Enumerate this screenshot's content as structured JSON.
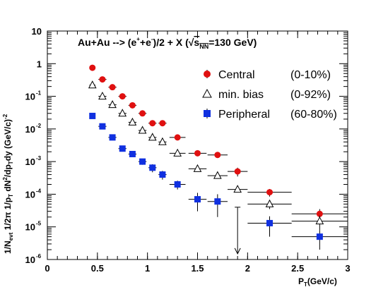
{
  "chart_data": {
    "type": "scatter",
    "yscale": "log",
    "xlim": [
      0,
      3
    ],
    "ylim": [
      1e-06,
      10
    ],
    "xticks": [
      "0",
      "0.5",
      "1",
      "1.5",
      "2",
      "2.5",
      "3"
    ],
    "yticks": [
      {
        "base": "10",
        "exp": "-6",
        "value": 1e-06
      },
      {
        "base": "10",
        "exp": "-5",
        "value": 1e-05
      },
      {
        "base": "10",
        "exp": "-4",
        "value": 0.0001
      },
      {
        "base": "10",
        "exp": "-3",
        "value": 0.001
      },
      {
        "base": "10",
        "exp": "-2",
        "value": 0.01
      },
      {
        "base": "10",
        "exp": "-1",
        "value": 0.1
      },
      {
        "base": "1",
        "exp": "",
        "value": 1
      },
      {
        "base": "10",
        "exp": "",
        "value": 10
      }
    ],
    "title": {
      "part1": "Au+Au --> (e",
      "sup1": "+",
      "part2": "+e",
      "sup2": "-",
      "part3": ")/2 + X   (",
      "part4": "s",
      "sub": "NN",
      "part5": "=130 GeV)"
    },
    "xlabel": {
      "main": "P",
      "sub": "T",
      "rest": "(GeV/c)"
    },
    "ylabel": "1/N_evt 1/2π 1/p_T dN²/dp_T dy (GeV/c)^-2",
    "legend": [
      {
        "name": "Central",
        "range": "(0-10%)",
        "color": "#e01010",
        "marker": "circle"
      },
      {
        "name": "min. bias",
        "range": "(0-92%)",
        "color": "#000000",
        "marker": "triangle-open"
      },
      {
        "name": "Peripheral",
        "range": "(60-80%)",
        "color": "#1030e0",
        "marker": "square"
      }
    ],
    "series": [
      {
        "name": "Central",
        "points": [
          {
            "x": 0.45,
            "y": 0.75,
            "xerr": 0.03
          },
          {
            "x": 0.55,
            "y": 0.33,
            "xerr": 0.04
          },
          {
            "x": 0.65,
            "y": 0.19,
            "xerr": 0.04
          },
          {
            "x": 0.75,
            "y": 0.1,
            "xerr": 0.04
          },
          {
            "x": 0.85,
            "y": 0.053,
            "xerr": 0.04
          },
          {
            "x": 0.95,
            "y": 0.03,
            "xerr": 0.04
          },
          {
            "x": 1.05,
            "y": 0.015,
            "xerr": 0.04
          },
          {
            "x": 1.15,
            "y": 0.015,
            "xerr": 0.04
          },
          {
            "x": 1.3,
            "y": 0.0055,
            "xerr": 0.08
          },
          {
            "x": 1.5,
            "y": 0.0018,
            "xerr": 0.09
          },
          {
            "x": 1.7,
            "y": 0.0016,
            "xerr": 0.1
          },
          {
            "x": 1.9,
            "y": 0.0005,
            "xerr": 0.1,
            "yerr": 0.00015
          },
          {
            "x": 2.22,
            "y": 0.000115,
            "xerr": 0.22,
            "yerr": 3e-05
          },
          {
            "x": 2.72,
            "y": 2.5e-05,
            "xerr": 0.28,
            "yerr": 1e-05
          }
        ]
      },
      {
        "name": "min. bias",
        "points": [
          {
            "x": 0.45,
            "y": 0.22,
            "xerr": 0.03
          },
          {
            "x": 0.55,
            "y": 0.1,
            "xerr": 0.04
          },
          {
            "x": 0.65,
            "y": 0.055,
            "xerr": 0.04
          },
          {
            "x": 0.75,
            "y": 0.03,
            "xerr": 0.04
          },
          {
            "x": 0.85,
            "y": 0.016,
            "xerr": 0.04
          },
          {
            "x": 0.95,
            "y": 0.009,
            "xerr": 0.04
          },
          {
            "x": 1.05,
            "y": 0.0055,
            "xerr": 0.04
          },
          {
            "x": 1.15,
            "y": 0.004,
            "xerr": 0.04
          },
          {
            "x": 1.3,
            "y": 0.0018,
            "xerr": 0.08
          },
          {
            "x": 1.5,
            "y": 0.0006,
            "xerr": 0.09
          },
          {
            "x": 1.7,
            "y": 0.00037,
            "xerr": 0.1
          },
          {
            "x": 1.9,
            "y": 0.00014,
            "xerr": 0.1
          },
          {
            "x": 2.22,
            "y": 5e-05,
            "xerr": 0.22,
            "yerr": 1.5e-05
          },
          {
            "x": 2.72,
            "y": 1.5e-05,
            "xerr": 0.28,
            "yerr": 7e-06
          }
        ]
      },
      {
        "name": "Peripheral",
        "points": [
          {
            "x": 0.45,
            "y": 0.025,
            "xerr": 0.03
          },
          {
            "x": 0.55,
            "y": 0.012,
            "xerr": 0.04
          },
          {
            "x": 0.65,
            "y": 0.0055,
            "xerr": 0.04
          },
          {
            "x": 0.75,
            "y": 0.0025,
            "xerr": 0.04
          },
          {
            "x": 0.85,
            "y": 0.0017,
            "xerr": 0.04
          },
          {
            "x": 0.95,
            "y": 0.001,
            "xerr": 0.04,
            "yerr": 0.0002
          },
          {
            "x": 1.05,
            "y": 0.00065,
            "xerr": 0.04,
            "yerr": 0.00018
          },
          {
            "x": 1.15,
            "y": 0.0004,
            "xerr": 0.04,
            "yerr": 0.00012
          },
          {
            "x": 1.3,
            "y": 0.0002,
            "xerr": 0.08,
            "yerr": 6e-05
          },
          {
            "x": 1.5,
            "y": 7e-05,
            "xerr": 0.09,
            "yerr": 4e-05
          },
          {
            "x": 1.7,
            "y": 6e-05,
            "xerr": 0.1,
            "yerr": 4e-05
          },
          {
            "x": 2.22,
            "y": 1.3e-05,
            "xerr": 0.22,
            "yerr": 8e-06
          },
          {
            "x": 2.72,
            "y": 5e-06,
            "xerr": 0.28,
            "yerr": 3e-06
          }
        ]
      }
    ],
    "upper_limit": {
      "x": 1.9,
      "y_from": 4e-05,
      "y_to": 1.5e-06
    }
  }
}
